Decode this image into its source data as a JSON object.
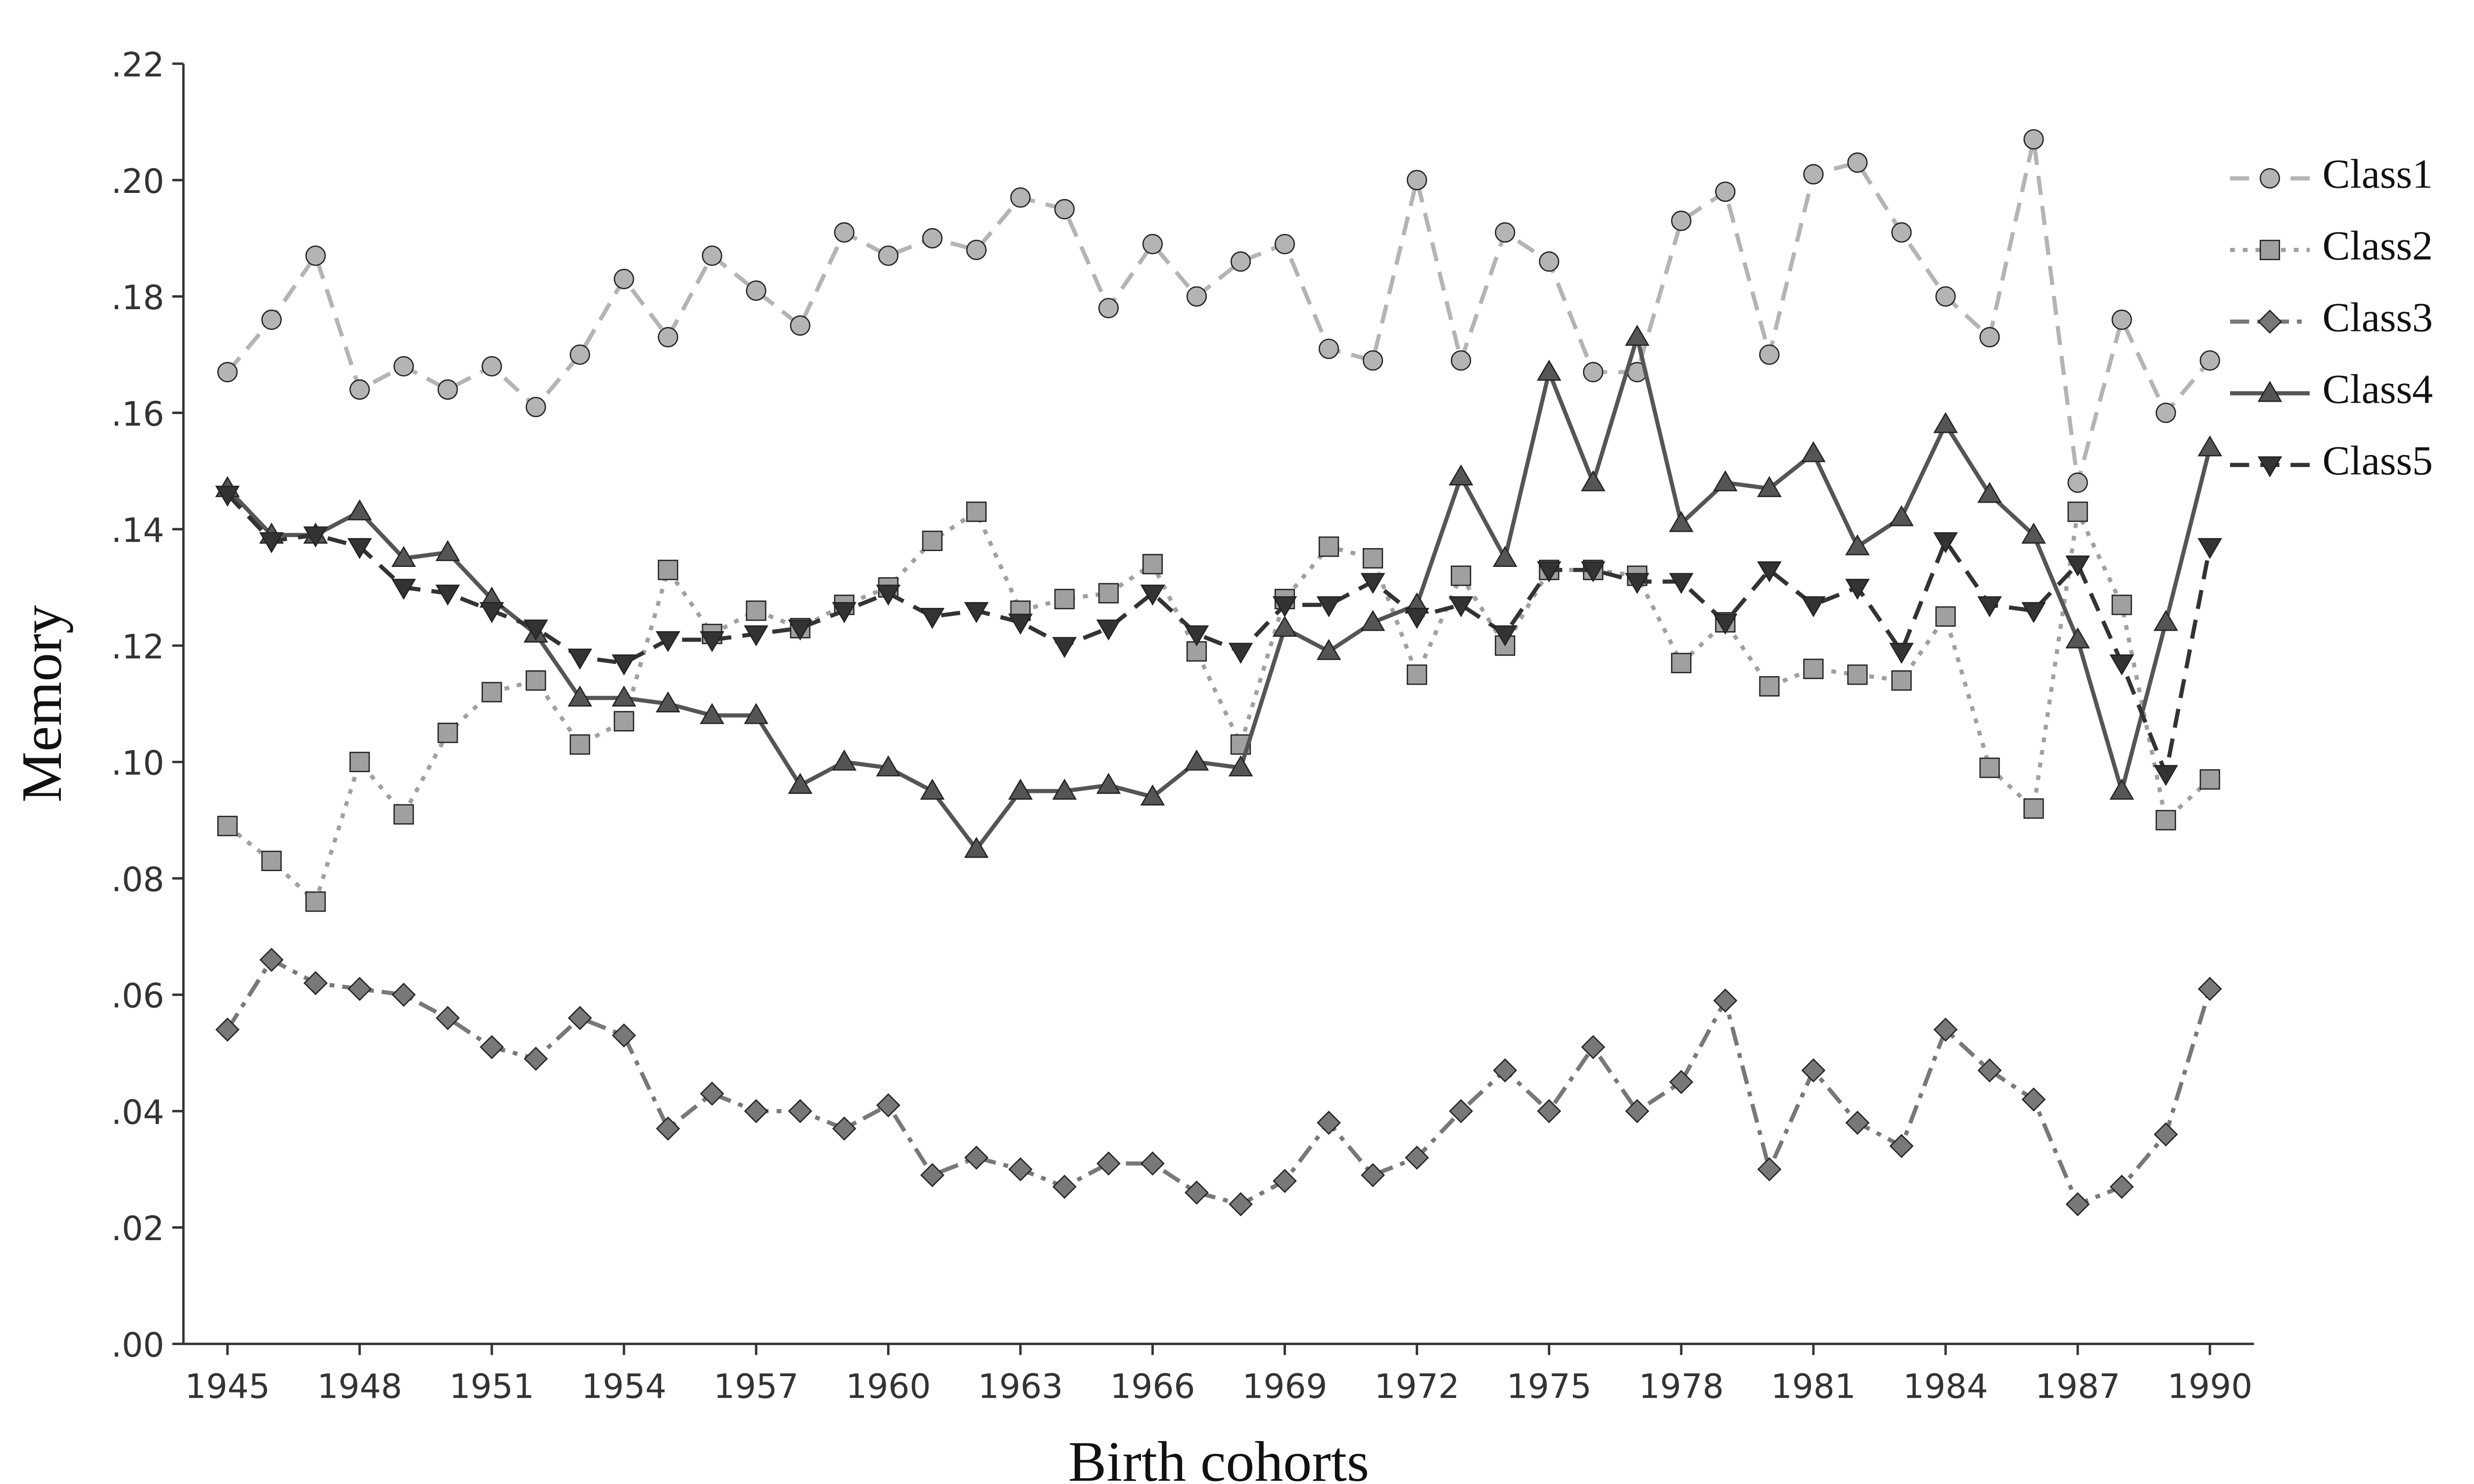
{
  "chart_data": {
    "type": "line",
    "x_label": "Birth cohorts",
    "y_label": "Memory",
    "x": [
      1945,
      1946,
      1947,
      1948,
      1949,
      1950,
      1951,
      1952,
      1953,
      1954,
      1955,
      1956,
      1957,
      1958,
      1959,
      1960,
      1961,
      1962,
      1963,
      1964,
      1965,
      1966,
      1967,
      1968,
      1969,
      1970,
      1971,
      1972,
      1973,
      1974,
      1975,
      1976,
      1977,
      1978,
      1979,
      1980,
      1981,
      1982,
      1983,
      1984,
      1985,
      1986,
      1987,
      1988,
      1989,
      1990
    ],
    "xlim": [
      1944,
      1991
    ],
    "xticks": [
      1945,
      1948,
      1951,
      1954,
      1957,
      1960,
      1963,
      1966,
      1969,
      1972,
      1975,
      1978,
      1981,
      1984,
      1987,
      1990
    ],
    "ylim": [
      0,
      0.22
    ],
    "yticks": [
      {
        "value": 0,
        "label": ".00"
      },
      {
        "value": 0.02,
        "label": ".02"
      },
      {
        "value": 0.04,
        "label": ".04"
      },
      {
        "value": 0.06,
        "label": ".06"
      },
      {
        "value": 0.08,
        "label": ".08"
      },
      {
        "value": 0.1,
        "label": ".10"
      },
      {
        "value": 0.12,
        "label": ".12"
      },
      {
        "value": 0.14,
        "label": ".14"
      },
      {
        "value": 0.16,
        "label": ".16"
      },
      {
        "value": 0.18,
        "label": ".18"
      },
      {
        "value": 0.2,
        "label": ".20"
      },
      {
        "value": 0.22,
        "label": ".22"
      }
    ],
    "grid": false,
    "legend": "right",
    "series": [
      {
        "name": "Class1",
        "color": "#b4b4b4",
        "dash": "dashed",
        "marker": "circle",
        "values": [
          0.167,
          0.176,
          0.187,
          0.164,
          0.168,
          0.164,
          0.168,
          0.161,
          0.17,
          0.183,
          0.173,
          0.187,
          0.181,
          0.175,
          0.191,
          0.187,
          0.19,
          0.188,
          0.197,
          0.195,
          0.178,
          0.189,
          0.18,
          0.186,
          0.189,
          0.171,
          0.169,
          0.2,
          0.169,
          0.191,
          0.186,
          0.167,
          0.167,
          0.193,
          0.198,
          0.17,
          0.201,
          0.203,
          0.191,
          0.18,
          0.173,
          0.207,
          0.148,
          0.176,
          0.16,
          0.169
        ]
      },
      {
        "name": "Class2",
        "color": "#a0a0a0",
        "dash": "dotted",
        "marker": "square",
        "values": [
          0.089,
          0.083,
          0.076,
          0.1,
          0.091,
          0.105,
          0.112,
          0.114,
          0.103,
          0.107,
          0.133,
          0.122,
          0.126,
          0.123,
          0.127,
          0.13,
          0.138,
          0.143,
          0.126,
          0.128,
          0.129,
          0.134,
          0.119,
          0.103,
          0.128,
          0.137,
          0.135,
          0.115,
          0.132,
          0.12,
          0.133,
          0.133,
          0.132,
          0.117,
          0.124,
          0.113,
          0.116,
          0.115,
          0.114,
          0.125,
          0.099,
          0.092,
          0.143,
          0.127,
          0.09,
          0.097
        ]
      },
      {
        "name": "Class3",
        "color": "#787878",
        "dash": "dashdot",
        "marker": "diamond",
        "values": [
          0.054,
          0.066,
          0.062,
          0.061,
          0.06,
          0.056,
          0.051,
          0.049,
          0.056,
          0.053,
          0.037,
          0.043,
          0.04,
          0.04,
          0.037,
          0.041,
          0.029,
          0.032,
          0.03,
          0.027,
          0.031,
          0.031,
          0.026,
          0.024,
          0.028,
          0.038,
          0.029,
          0.032,
          0.04,
          0.047,
          0.04,
          0.051,
          0.04,
          0.045,
          0.059,
          0.03,
          0.047,
          0.038,
          0.034,
          0.054,
          0.047,
          0.042,
          0.024,
          0.027,
          0.036,
          0.061
        ]
      },
      {
        "name": "Class4",
        "color": "#555555",
        "dash": "solid",
        "marker": "triangle-up",
        "values": [
          0.147,
          0.139,
          0.139,
          0.143,
          0.135,
          0.136,
          0.128,
          0.122,
          0.111,
          0.111,
          0.11,
          0.108,
          0.108,
          0.096,
          0.1,
          0.099,
          0.095,
          0.085,
          0.095,
          0.095,
          0.096,
          0.094,
          0.1,
          0.099,
          0.123,
          0.119,
          0.124,
          0.127,
          0.149,
          0.135,
          0.167,
          0.148,
          0.173,
          0.141,
          0.148,
          0.147,
          0.153,
          0.137,
          0.142,
          0.158,
          0.146,
          0.139,
          0.121,
          0.095,
          0.124,
          0.154
        ]
      },
      {
        "name": "Class5",
        "color": "#333333",
        "dash": "dashed",
        "marker": "triangle-down",
        "values": [
          0.146,
          0.138,
          0.139,
          0.137,
          0.13,
          0.129,
          0.126,
          0.123,
          0.118,
          0.117,
          0.121,
          0.121,
          0.122,
          0.123,
          0.126,
          0.129,
          0.125,
          0.126,
          0.124,
          0.12,
          0.123,
          0.129,
          0.122,
          0.119,
          0.127,
          0.127,
          0.131,
          0.125,
          0.127,
          0.122,
          0.133,
          0.133,
          0.131,
          0.131,
          0.124,
          0.133,
          0.127,
          0.13,
          0.119,
          0.138,
          0.127,
          0.126,
          0.134,
          0.117,
          0.098,
          0.137
        ]
      }
    ]
  }
}
